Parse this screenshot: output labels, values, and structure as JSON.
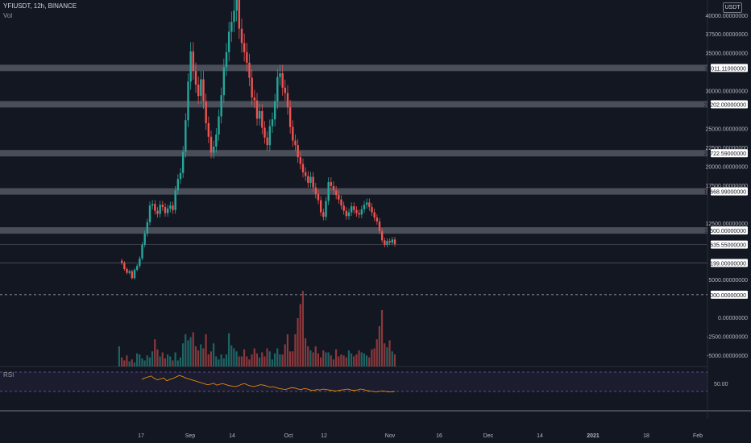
{
  "header": {
    "symbol_line": "YFIUSDT, 12h, BINANCE",
    "volume_label": "Vol",
    "rsi_label": "RSI",
    "currency": "USDT"
  },
  "chart_data": {
    "type": "candlestick",
    "title": "YFIUSDT, 12h, BINANCE",
    "ylim": [
      -6500,
      42000
    ],
    "price_axis_ticks": [
      40000,
      37500,
      35000,
      32500,
      30000,
      27500,
      25000,
      22500,
      20000,
      17500,
      15000,
      12500,
      10000,
      7500,
      5000,
      2500,
      0,
      -2500,
      -5000
    ],
    "price_axis_labels": [
      "40000.00000000",
      "37500.00000000",
      "35000.00000000",
      "",
      "30000.00000000",
      "",
      "25000.00000000",
      "22500.00000000",
      "20000.00000000",
      "17500.00000000",
      "",
      "12500.00000000",
      "",
      "",
      "5000.00000000",
      "",
      "0.00000000",
      "-2500.00000000",
      "-5000.00000000"
    ],
    "x_tick_labels": [
      "17",
      "Sep",
      "14",
      "Oct",
      "12",
      "Nov",
      "16",
      "Dec",
      "14",
      "2021",
      "18",
      "Feb"
    ],
    "horizontal_levels": [
      {
        "value": 33011.11,
        "label": "33011.11000000",
        "style": "band"
      },
      {
        "value": 28202,
        "label": "28202.00000000",
        "style": "band"
      },
      {
        "value": 21722.59,
        "label": "21722.59000000",
        "style": "band"
      },
      {
        "value": 16668.99,
        "label": "16668.99000000",
        "style": "band"
      },
      {
        "value": 11500,
        "label": "11500.00000000",
        "style": "band"
      },
      {
        "value": 9635.55,
        "label": "9635.55000000",
        "style": "line"
      },
      {
        "value": 7199,
        "label": "7199.00000000",
        "style": "line"
      },
      {
        "value": 3000,
        "label": "3000.00000000",
        "style": "dashed"
      }
    ],
    "price_series": [
      7500,
      7200,
      6400,
      5900,
      6100,
      5200,
      6300,
      6800,
      7800,
      9600,
      11100,
      12600,
      14800,
      15000,
      14100,
      13700,
      14900,
      14600,
      13800,
      14400,
      14800,
      14200,
      16800,
      18300,
      19100,
      21900,
      26100,
      31200,
      35200,
      32600,
      30800,
      29300,
      31500,
      28600,
      25700,
      23900,
      21800,
      22600,
      24200,
      26600,
      29400,
      33100,
      35100,
      37800,
      39100,
      40600,
      42000,
      38200,
      36300,
      35100,
      33700,
      31700,
      29100,
      28700,
      26300,
      27300,
      25100,
      23800,
      22800,
      25300,
      26200,
      28600,
      31800,
      32300,
      30400,
      29700,
      27800,
      25200,
      23400,
      22800,
      21200,
      20300,
      19200,
      18700,
      17800,
      18600,
      17200,
      16300,
      15500,
      13900,
      13300,
      15400,
      17900,
      17400,
      16800,
      16200,
      15600,
      14800,
      14100,
      13400,
      13900,
      14700,
      14200,
      13800,
      13600,
      14300,
      14900,
      15200,
      14600,
      13900,
      13200,
      12700,
      11400,
      10200,
      9600,
      10100,
      9900,
      10300,
      9700
    ],
    "volume_series": [
      2000,
      900,
      600,
      1100,
      500,
      700,
      400,
      1300,
      1200,
      800,
      600,
      1100,
      900,
      1500,
      2700,
      1700,
      1000,
      1400,
      800,
      1200,
      1000,
      600,
      1400,
      600,
      900,
      2300,
      3200,
      2600,
      2900,
      3400,
      2000,
      1600,
      2200,
      1800,
      3200,
      1200,
      1500,
      2300,
      1000,
      700,
      1200,
      800,
      1200,
      3300,
      2100,
      1800,
      1500,
      1000,
      1000,
      1700,
      1000,
      700,
      1200,
      1800,
      1300,
      900,
      1400,
      1000,
      1800,
      1500,
      700,
      1300,
      1800,
      1200,
      1200,
      2200,
      3200,
      1500,
      1500,
      3200,
      4800,
      6200,
      7500,
      2800,
      2000,
      1600,
      1400,
      2000,
      1300,
      900,
      1600,
      1400,
      1400,
      1100,
      700,
      1700,
      1000,
      1200,
      1100,
      900,
      1600,
      1300,
      1000,
      1200,
      1600,
      1400,
      1300,
      1100,
      900,
      1700,
      1800,
      2700,
      4000,
      5600,
      2300,
      1900,
      2600,
      1500,
      1200
    ],
    "rsi_series": [
      55,
      58,
      60,
      62,
      57,
      54,
      56,
      58,
      52,
      55,
      57,
      60,
      63,
      61,
      58,
      56,
      54,
      52,
      50,
      48,
      46,
      44,
      45,
      47,
      43,
      45,
      46,
      44,
      42,
      41,
      40,
      42,
      45,
      46,
      43,
      41,
      40,
      42,
      44,
      43,
      41,
      39,
      40,
      38,
      36,
      35,
      34,
      36,
      38,
      37,
      35,
      34,
      36,
      35,
      33,
      32,
      34,
      33,
      35,
      34,
      33,
      32,
      31,
      32,
      33,
      34,
      35,
      33,
      32,
      33,
      35,
      34,
      32,
      31,
      30,
      29,
      30,
      31,
      30,
      29,
      29,
      30
    ],
    "rsi_ylim": [
      0,
      100
    ],
    "rsi_bands": [
      70,
      30
    ],
    "rsi_axis_label": "50.00"
  },
  "colors": {
    "bg": "#131722",
    "up": "#26a69a",
    "down": "#ef5350",
    "band": "#787b86",
    "rsi_line": "#ff9800",
    "rsi_band": "#7e57c2"
  }
}
